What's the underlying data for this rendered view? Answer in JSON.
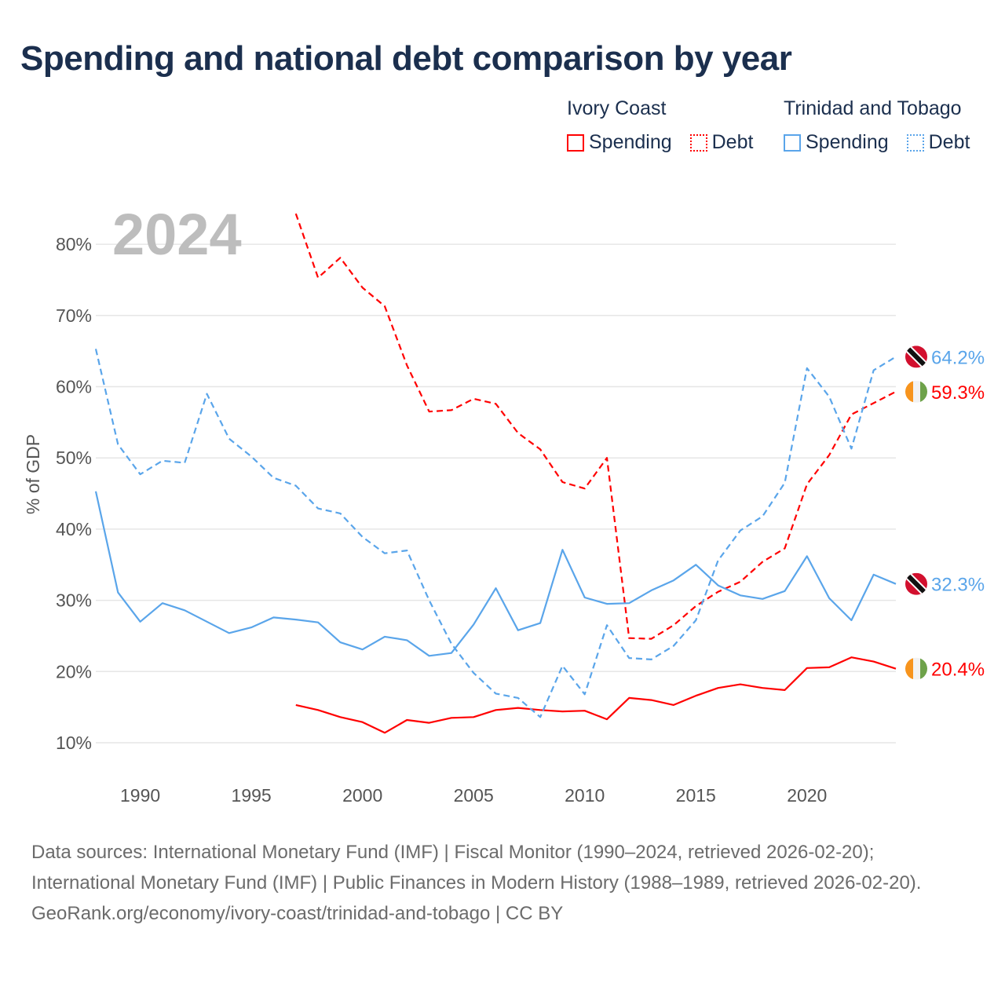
{
  "title": "Spending and national debt comparison by year",
  "legend": {
    "groups": [
      {
        "name": "Ivory Coast",
        "color": "#ff0000",
        "items": [
          "Spending",
          "Debt"
        ]
      },
      {
        "name": "Trinidad and Tobago",
        "color": "#5aa5ea",
        "items": [
          "Spending",
          "Debt"
        ]
      }
    ]
  },
  "year_watermark": "2024",
  "chart_data": {
    "type": "line",
    "title": "Spending and national debt comparison by year",
    "xlabel": "",
    "ylabel": "% of GDP",
    "xlim": [
      1988,
      2024
    ],
    "ylim": [
      10,
      84
    ],
    "x_ticks": [
      1990,
      1995,
      2000,
      2005,
      2010,
      2015,
      2020
    ],
    "y_ticks": [
      10,
      20,
      30,
      40,
      50,
      60,
      70,
      80
    ],
    "y_tick_labels": [
      "10%",
      "20%",
      "30%",
      "40%",
      "50%",
      "60%",
      "70%",
      "80%"
    ],
    "grid": true,
    "legend_position": "top-right",
    "series": [
      {
        "name": "Ivory Coast Spending",
        "color": "#ff0000",
        "dash": false,
        "flag": "ivory-coast",
        "end_label": "20.4%",
        "start": 1997,
        "values": [
          15.3,
          14.6,
          13.6,
          12.9,
          11.4,
          13.2,
          12.8,
          13.5,
          13.6,
          14.6,
          14.9,
          14.6,
          14.4,
          14.5,
          13.3,
          16.3,
          16.0,
          15.3,
          16.6,
          17.7,
          18.2,
          17.7,
          17.4,
          20.5,
          20.6,
          22.0,
          21.4,
          20.4
        ]
      },
      {
        "name": "Ivory Coast Debt",
        "color": "#ff0000",
        "dash": true,
        "flag": "ivory-coast",
        "end_label": "59.3%",
        "start": 1997,
        "values": [
          84.3,
          75.3,
          78.1,
          73.9,
          71.3,
          63.0,
          56.5,
          56.7,
          58.3,
          57.6,
          53.5,
          51.2,
          46.6,
          45.7,
          50.0,
          24.7,
          24.6,
          26.5,
          29.2,
          31.2,
          32.6,
          35.4,
          37.3,
          46.3,
          50.4,
          56.1,
          57.7,
          59.3
        ]
      },
      {
        "name": "Trinidad and Tobago Spending",
        "color": "#5aa5ea",
        "dash": false,
        "flag": "trinidad-and-tobago",
        "end_label": "32.3%",
        "start": 1988,
        "values": [
          45.3,
          31.1,
          27.0,
          29.6,
          28.6,
          27.0,
          25.4,
          26.2,
          27.6,
          27.3,
          26.9,
          24.1,
          23.1,
          24.9,
          24.4,
          22.2,
          22.6,
          26.6,
          31.7,
          25.8,
          26.8,
          37.1,
          30.4,
          29.5,
          29.6,
          31.4,
          32.8,
          35.0,
          32.1,
          30.7,
          30.2,
          31.3,
          36.2,
          30.3,
          27.2,
          33.6,
          32.3
        ]
      },
      {
        "name": "Trinidad and Tobago Debt",
        "color": "#5aa5ea",
        "dash": true,
        "flag": "trinidad-and-tobago",
        "end_label": "64.2%",
        "start": 1988,
        "values": [
          65.3,
          51.9,
          47.7,
          49.6,
          49.3,
          59.0,
          52.7,
          50.2,
          47.2,
          46.1,
          42.9,
          42.2,
          38.9,
          36.6,
          37.0,
          30.0,
          23.9,
          19.8,
          16.9,
          16.3,
          13.6,
          20.8,
          16.8,
          26.5,
          21.9,
          21.7,
          23.6,
          27.2,
          35.6,
          39.8,
          41.8,
          46.5,
          62.6,
          58.6,
          51.3,
          62.3,
          64.2
        ]
      }
    ]
  },
  "footer": {
    "sources": "Data sources: International Monetary Fund (IMF) | Fiscal Monitor (1990–2024, retrieved 2026-02-20); International Monetary Fund (IMF) | Public Finances in Modern History (1988–1989, retrieved 2026-02-20).",
    "attribution": "GeoRank.org/economy/ivory-coast/trinidad-and-tobago | CC BY"
  }
}
